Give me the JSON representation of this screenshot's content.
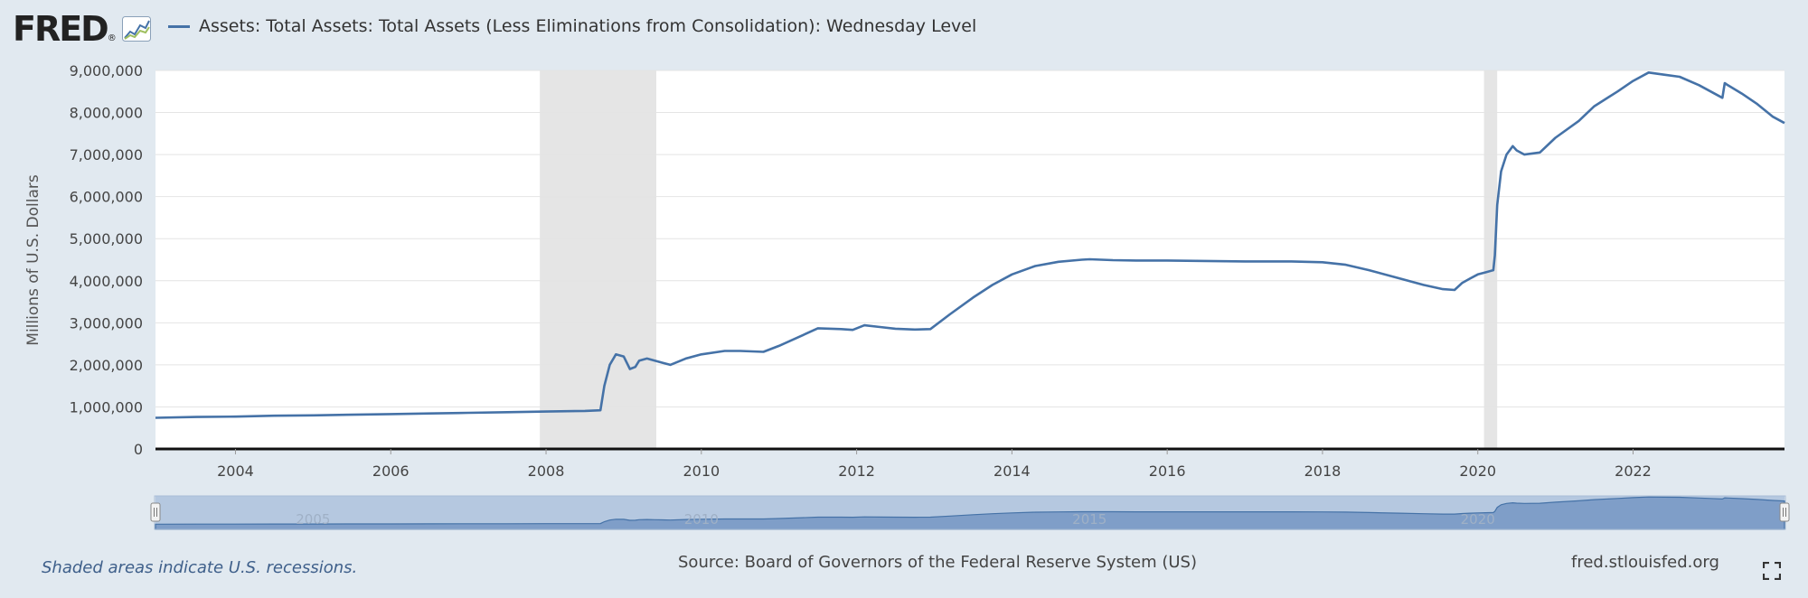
{
  "logo": {
    "text": "FRED",
    "registered": "®",
    "icon": "fred-chart-icon"
  },
  "legend": {
    "series_label": "Assets: Total Assets: Total Assets (Less Eliminations from Consolidation): Wednesday Level",
    "color": "#4572a7"
  },
  "footer": {
    "note": "Shaded areas indicate U.S. recessions.",
    "source": "Source: Board of Governors of the Federal Reserve System (US)",
    "site": "fred.stlouisfed.org",
    "fullscreen_icon": "fullscreen-icon"
  },
  "colors": {
    "line": "#4572a7",
    "recession": "#e5e5e5",
    "navigator_fill": "#7f9ec8",
    "navigator_bg": "#b5c8e0",
    "background": "#e1e9f0"
  },
  "chart_data": {
    "type": "line",
    "title": "",
    "xlabel": "",
    "ylabel": "Millions of U.S. Dollars",
    "xlim": [
      2002.97,
      2023.95
    ],
    "ylim": [
      0,
      9000000
    ],
    "y_ticks": [
      "0",
      "1,000,000",
      "2,000,000",
      "3,000,000",
      "4,000,000",
      "5,000,000",
      "6,000,000",
      "7,000,000",
      "8,000,000",
      "9,000,000"
    ],
    "y_tick_values": [
      0,
      1000000,
      2000000,
      3000000,
      4000000,
      5000000,
      6000000,
      7000000,
      8000000,
      9000000
    ],
    "x_ticks": [
      "2004",
      "2006",
      "2008",
      "2010",
      "2012",
      "2014",
      "2016",
      "2018",
      "2020",
      "2022"
    ],
    "x_tick_values": [
      2004,
      2006,
      2008,
      2010,
      2012,
      2014,
      2016,
      2018,
      2020,
      2022
    ],
    "grid": true,
    "legend_position": "top",
    "recessions": [
      [
        2007.92,
        2009.42
      ],
      [
        2020.08,
        2020.25
      ]
    ],
    "navigator_year_labels": [
      "2005",
      "2010",
      "2015",
      "2020"
    ],
    "navigator_year_values": [
      2005,
      2010,
      2015,
      2020
    ],
    "series": [
      {
        "name": "Assets: Total Assets: Total Assets (Less Eliminations from Consolidation): Wednesday Level",
        "x": [
          2002.97,
          2003.5,
          2004.0,
          2004.5,
          2005.0,
          2005.5,
          2006.0,
          2006.5,
          2007.0,
          2007.5,
          2008.0,
          2008.5,
          2008.7,
          2008.75,
          2008.82,
          2008.9,
          2009.0,
          2009.08,
          2009.15,
          2009.2,
          2009.3,
          2009.4,
          2009.5,
          2009.6,
          2009.8,
          2010.0,
          2010.3,
          2010.5,
          2010.8,
          2011.0,
          2011.3,
          2011.5,
          2011.8,
          2011.95,
          2012.1,
          2012.3,
          2012.5,
          2012.75,
          2012.95,
          2013.2,
          2013.5,
          2013.75,
          2014.0,
          2014.3,
          2014.6,
          2014.9,
          2015.0,
          2015.3,
          2015.6,
          2016.0,
          2016.5,
          2017.0,
          2017.3,
          2017.6,
          2018.0,
          2018.3,
          2018.6,
          2019.0,
          2019.3,
          2019.55,
          2019.7,
          2019.8,
          2019.9,
          2020.0,
          2020.1,
          2020.2,
          2020.22,
          2020.25,
          2020.3,
          2020.37,
          2020.45,
          2020.5,
          2020.6,
          2020.8,
          2021.0,
          2021.3,
          2021.5,
          2021.8,
          2022.0,
          2022.2,
          2022.4,
          2022.6,
          2022.85,
          2023.0,
          2023.15,
          2023.18,
          2023.22,
          2023.4,
          2023.6,
          2023.8,
          2023.95
        ],
        "values": [
          740000,
          760000,
          770000,
          790000,
          800000,
          815000,
          830000,
          845000,
          860000,
          875000,
          890000,
          905000,
          920000,
          1500000,
          2000000,
          2250000,
          2200000,
          1900000,
          1950000,
          2100000,
          2150000,
          2100000,
          2050000,
          2000000,
          2150000,
          2250000,
          2330000,
          2330000,
          2310000,
          2450000,
          2700000,
          2870000,
          2850000,
          2830000,
          2940000,
          2900000,
          2860000,
          2840000,
          2850000,
          3200000,
          3600000,
          3900000,
          4150000,
          4350000,
          4450000,
          4500000,
          4510000,
          4490000,
          4480000,
          4480000,
          4470000,
          4460000,
          4460000,
          4460000,
          4440000,
          4380000,
          4250000,
          4050000,
          3900000,
          3800000,
          3780000,
          3950000,
          4050000,
          4150000,
          4200000,
          4250000,
          4600000,
          5800000,
          6600000,
          7000000,
          7200000,
          7100000,
          7000000,
          7050000,
          7400000,
          7800000,
          8150000,
          8500000,
          8750000,
          8950000,
          8900000,
          8850000,
          8650000,
          8500000,
          8350000,
          8700000,
          8650000,
          8450000,
          8200000,
          7900000,
          7750000
        ]
      }
    ]
  }
}
